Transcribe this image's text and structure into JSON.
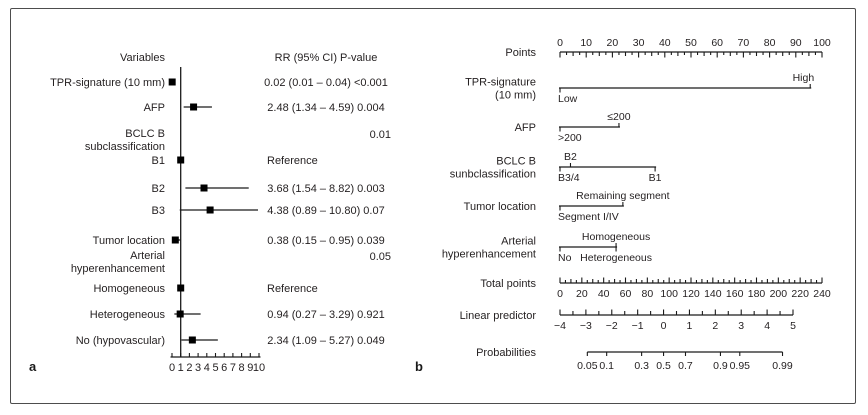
{
  "figure": {
    "panel_a_label": "a",
    "panel_b_label": "b",
    "background": "#ffffff",
    "line_color": "#1a1a1a",
    "text_color": "#231f20"
  },
  "chart_data": [
    {
      "type": "scatter",
      "subtype": "forest-plot",
      "title": "",
      "columns": {
        "variables": "Variables",
        "rr": "RR (95% CI) P-value"
      },
      "xlim": [
        0,
        10
      ],
      "x_ticks": [
        "0",
        "1",
        "2",
        "3",
        "4",
        "5",
        "6",
        "7",
        "8",
        "9",
        "10"
      ],
      "ref_line_x": 1,
      "rows": [
        {
          "label": "TPR-signature (10 mm)",
          "rr": 0.02,
          "ci_low": 0.01,
          "ci_high": 0.04,
          "value_text": "0.02 (0.01 – 0.04) <0.001",
          "align": "center"
        },
        {
          "label": "AFP",
          "rr": 2.48,
          "ci_low": 1.34,
          "ci_high": 4.59,
          "value_text": "2.48 (1.34 – 4.59) 0.004",
          "align": "center"
        },
        {
          "label": "BCLC B\nsubclassification",
          "value_text": "0.01",
          "align": "right"
        },
        {
          "label": "B1",
          "rr": 1,
          "value_text": "Reference",
          "align": "left"
        },
        {
          "label": "B2",
          "rr": 3.68,
          "ci_low": 1.54,
          "ci_high": 8.82,
          "value_text": "3.68 (1.54 – 8.82) 0.003",
          "align": "center"
        },
        {
          "label": "B3",
          "rr": 4.38,
          "ci_low": 0.89,
          "ci_high": 10.8,
          "value_text": "4.38 (0.89 – 10.80) 0.07",
          "align": "center"
        },
        {
          "label": "Tumor location",
          "rr": 0.38,
          "ci_low": 0.15,
          "ci_high": 0.95,
          "value_text": "0.38 (0.15 – 0.95) 0.039",
          "align": "center"
        },
        {
          "label": "Arterial\nhyperenhancement",
          "value_text": "0.05",
          "align": "right"
        },
        {
          "label": "Homogeneous",
          "rr": 1,
          "value_text": "Reference",
          "align": "left"
        },
        {
          "label": "Heterogeneous",
          "rr": 0.94,
          "ci_low": 0.27,
          "ci_high": 3.29,
          "value_text": "0.94 (0.27 – 3.29) 0.921",
          "align": "center"
        },
        {
          "label": "No (hypovascular)",
          "rr": 2.34,
          "ci_low": 1.09,
          "ci_high": 5.27,
          "value_text": "2.34 (1.09 – 5.27) 0.049",
          "align": "center"
        }
      ]
    },
    {
      "type": "line",
      "subtype": "nomogram",
      "rows": [
        {
          "kind": "ruler",
          "label": "Points",
          "scale": "points",
          "range": [
            0,
            100
          ],
          "major": 10,
          "minor": 2.5,
          "tick_dir": "down",
          "label_side": "above",
          "tick_labels": [
            "0",
            "10",
            "20",
            "30",
            "40",
            "50",
            "60",
            "70",
            "80",
            "90",
            "100"
          ]
        },
        {
          "kind": "cats",
          "label": "TPR-signature\n(10 mm)",
          "scale": "points",
          "extent": [
            0,
            95.5
          ],
          "cats": [
            {
              "text": "Low",
              "points": 0,
              "side": "below",
              "anchor": "start"
            },
            {
              "text": "High",
              "points": 95.5,
              "side": "above",
              "anchor": "end"
            }
          ]
        },
        {
          "kind": "cats",
          "label": "AFP",
          "scale": "points",
          "extent": [
            0,
            22.5
          ],
          "cats": [
            {
              "text": ">200",
              "points": 0,
              "side": "below",
              "anchor": "start"
            },
            {
              "text": "≤200",
              "points": 22.5,
              "side": "above",
              "anchor": "middle"
            }
          ]
        },
        {
          "kind": "cats",
          "label": "BCLC B\nsunbclassification",
          "scale": "points",
          "extent": [
            0,
            36.3
          ],
          "cats": [
            {
              "text": "B3/4",
              "points": 0,
              "side": "below",
              "anchor": "start"
            },
            {
              "text": "B2",
              "points": 4,
              "side": "above",
              "anchor": "middle"
            },
            {
              "text": "B1",
              "points": 36.3,
              "side": "below",
              "anchor": "middle"
            }
          ]
        },
        {
          "kind": "cats",
          "label": "Tumor location",
          "scale": "points",
          "extent": [
            0,
            24
          ],
          "cats": [
            {
              "text": "Segment I/IV",
              "points": 0,
              "side": "below",
              "anchor": "start"
            },
            {
              "text": "Remaining segment",
              "points": 24,
              "side": "above",
              "anchor": "middle"
            }
          ]
        },
        {
          "kind": "cats",
          "label": "Arterial\nhyperenhancement",
          "scale": "points",
          "extent": [
            0,
            21.4
          ],
          "cats": [
            {
              "text": "No",
              "points": 0,
              "side": "below",
              "anchor": "start"
            },
            {
              "text": "Homogeneous",
              "points": 21.4,
              "side": "above",
              "anchor": "middle"
            },
            {
              "text": "Heterogeneous",
              "points": 21.4,
              "side": "below",
              "anchor": "middle"
            }
          ]
        },
        {
          "kind": "ruler",
          "label": "Total points",
          "scale": "total",
          "range": [
            0,
            240
          ],
          "major": 20,
          "minor": 5,
          "tick_dir": "up",
          "label_side": "below",
          "tick_labels": [
            "0",
            "20",
            "40",
            "60",
            "80",
            "100",
            "120",
            "140",
            "160",
            "180",
            "200",
            "220",
            "240"
          ]
        },
        {
          "kind": "ruler",
          "label": "Linear predictor",
          "scale": "lp",
          "range": [
            -4,
            5
          ],
          "major": 1,
          "minor": 0.5,
          "tick_dir": "up",
          "label_side": "below",
          "tick_labels": [
            "−4",
            "−3",
            "−2",
            "−1",
            "0",
            "1",
            "2",
            "3",
            "4",
            "5"
          ]
        },
        {
          "kind": "prob",
          "label": "Probabilities",
          "scale": "prob",
          "values": [
            0.05,
            0.1,
            0.3,
            0.5,
            0.7,
            0.9,
            0.95,
            0.99
          ],
          "label_side": "below",
          "tick_labels": [
            "0.05",
            "0.1",
            "0.3",
            "0.5",
            "0.7",
            "0.9",
            "0.95",
            "0.99"
          ]
        }
      ]
    }
  ]
}
